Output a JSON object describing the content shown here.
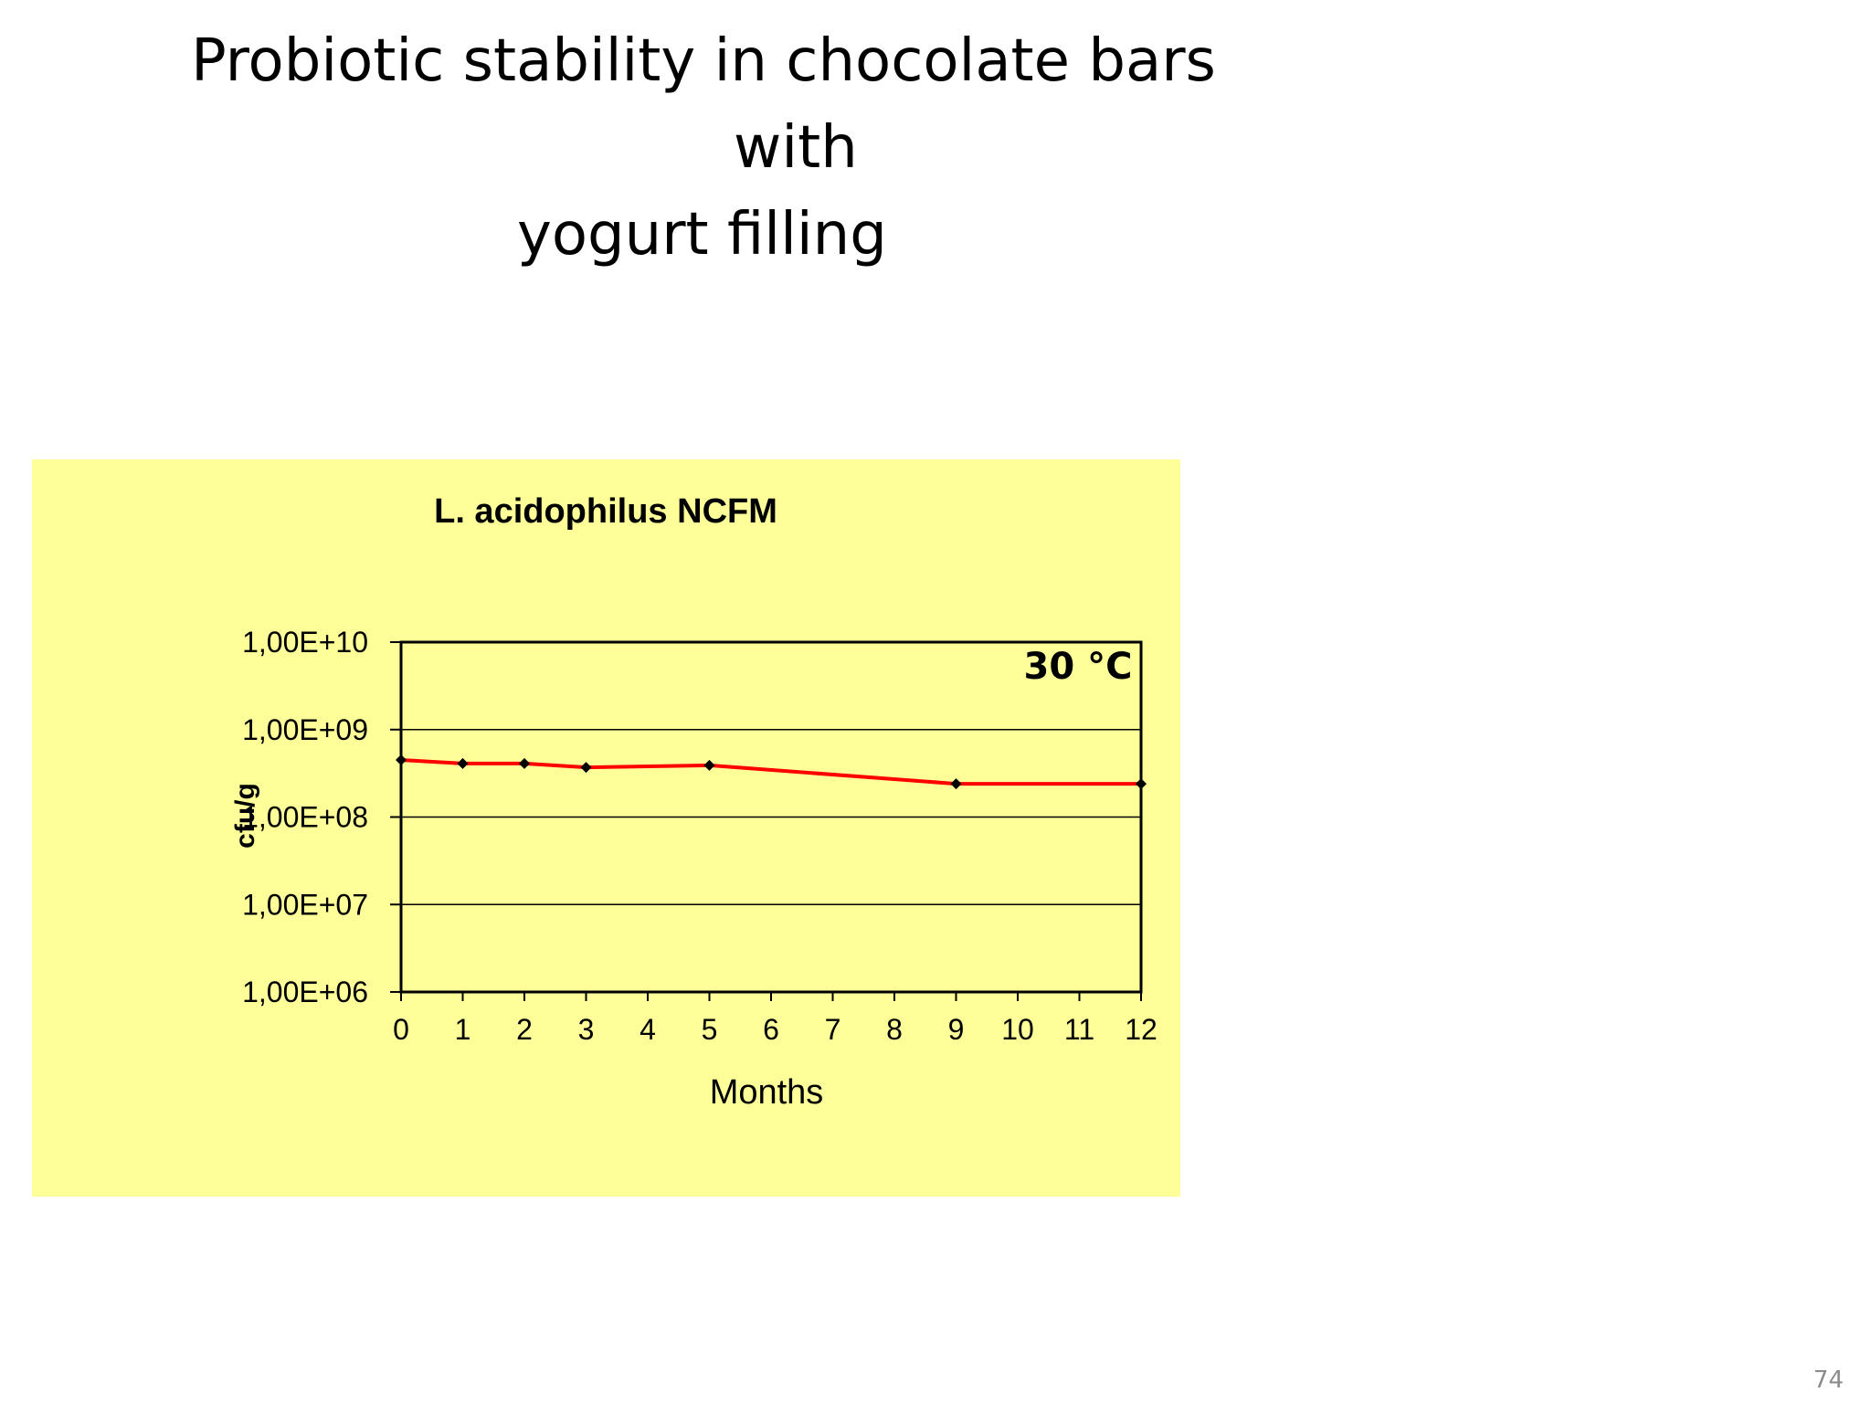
{
  "slide": {
    "title_lines": [
      "Probiotic stability in chocolate bars",
      "with",
      "yogurt filling"
    ],
    "page_number": "74"
  },
  "colors": {
    "panel_background": "#ffff99",
    "series_line": "#ff0000",
    "marker": "#000000"
  },
  "chart_data": {
    "type": "line",
    "title": "L. acidophilus NCFM",
    "annotation": "30 °C",
    "xlabel": "Months",
    "ylabel": "cfu/g",
    "x_ticks": [
      0,
      1,
      2,
      3,
      4,
      5,
      6,
      7,
      8,
      9,
      10,
      11,
      12
    ],
    "xlim": [
      0,
      12
    ],
    "y_scale": "log",
    "ylim": [
      1000000,
      10000000000
    ],
    "y_ticks": [
      1000000,
      10000000,
      100000000,
      1000000000,
      10000000000
    ],
    "y_tick_labels": [
      "1,00E+06",
      "1,00E+07",
      "1,00E+08",
      "1,00E+09",
      "1,00E+10"
    ],
    "grid": "horizontal",
    "legend": "none",
    "series": [
      {
        "x": [
          0,
          1,
          2,
          3,
          5,
          9,
          12
        ],
        "y": [
          450000000,
          410000000,
          410000000,
          370000000,
          390000000,
          240000000,
          240000000
        ]
      }
    ]
  }
}
